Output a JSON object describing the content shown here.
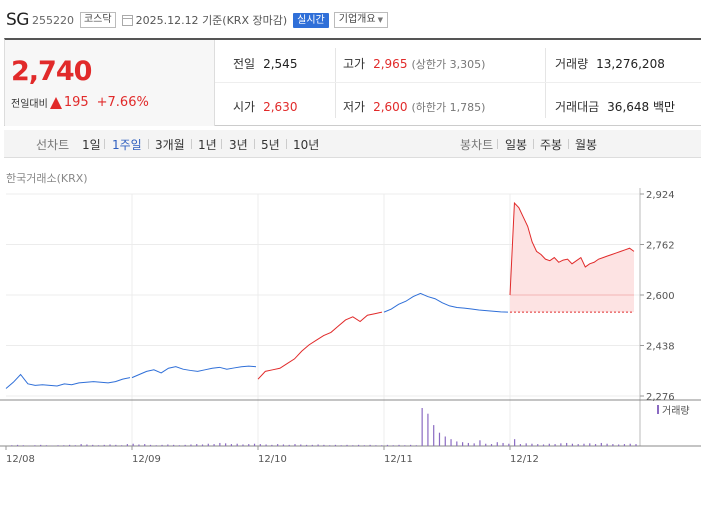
{
  "header": {
    "name": "SG",
    "code": "255220",
    "market": "코스닥",
    "date": "2025.12.12",
    "basis": "기준(KRX 장마감)",
    "live_label": "실시간",
    "corp_label": "기업개요",
    "calendar_icon": "calendar-icon"
  },
  "quote": {
    "price": "2,740",
    "change_label": "전일대비",
    "change": "195",
    "change_pct": "+7.66%",
    "prev_label": "전일",
    "prev": "2,545",
    "open_label": "시가",
    "open": "2,630",
    "high_label": "고가",
    "high": "2,965",
    "upper_limit": "(상한가 3,305)",
    "low_label": "저가",
    "low": "2,600",
    "lower_limit": "(하한가 1,785)",
    "volume_label": "거래량",
    "volume": "13,276,208",
    "amount_label": "거래대금",
    "amount": "36,648 백만",
    "up_color": "#e12a2a"
  },
  "tabs": {
    "line_label": "선차트",
    "line": [
      "1일",
      "1주일",
      "3개월",
      "1년",
      "3년",
      "5년",
      "10년"
    ],
    "active": "1주일",
    "candle_label": "봉차트",
    "candle": [
      "일봉",
      "주봉",
      "월봉"
    ]
  },
  "source_label": "한국거래소(KRX)",
  "chart_data": {
    "type": "line",
    "y_ticks": [
      "2,924",
      "2,762",
      "2,600",
      "2,438",
      "2,276"
    ],
    "ylim": [
      2276,
      2924
    ],
    "x_ticks": [
      "12/08",
      "12/09",
      "12/10",
      "12/11",
      "12/12"
    ],
    "prev_close": 2545,
    "volume_legend": "거래량",
    "series": [
      {
        "day": "12/08",
        "values": [
          2300,
          2320,
          2345,
          2315,
          2310,
          2312,
          2310,
          2308,
          2315,
          2312,
          2318,
          2320,
          2322,
          2320,
          2318,
          2322,
          2330,
          2335
        ]
      },
      {
        "day": "12/09",
        "values": [
          2335,
          2345,
          2355,
          2360,
          2350,
          2365,
          2370,
          2362,
          2358,
          2355,
          2360,
          2365,
          2368,
          2362,
          2366,
          2370,
          2372,
          2370
        ]
      },
      {
        "day": "12/10",
        "values": [
          2330,
          2355,
          2360,
          2365,
          2380,
          2395,
          2420,
          2440,
          2455,
          2470,
          2480,
          2500,
          2520,
          2530,
          2515,
          2535,
          2540,
          2545
        ]
      },
      {
        "day": "12/11",
        "values": [
          2545,
          2555,
          2570,
          2580,
          2595,
          2605,
          2595,
          2588,
          2575,
          2565,
          2560,
          2558,
          2555,
          2552,
          2550,
          2548,
          2546,
          2545
        ]
      },
      {
        "day": "12/12",
        "values": [
          2600,
          2895,
          2880,
          2850,
          2820,
          2770,
          2740,
          2730,
          2715,
          2710,
          2720,
          2705,
          2712,
          2715,
          2700,
          2710,
          2720,
          2690,
          2700,
          2705,
          2715,
          2720,
          2725,
          2730,
          2735,
          2740,
          2745,
          2750,
          2740
        ]
      }
    ],
    "volume": [
      0,
      0.02,
      0.03,
      0.02,
      0.01,
      0.02,
      0.03,
      0.02,
      0.01,
      0.02,
      0.02,
      0.03,
      0.02,
      0.05,
      0.04,
      0.03,
      0.02,
      0.03,
      0.04,
      0.03,
      0.02,
      0.05,
      0.06,
      0.04,
      0.05,
      0.03,
      0.02,
      0.03,
      0.04,
      0.03,
      0.02,
      0.03,
      0.04,
      0.05,
      0.04,
      0.06,
      0.05,
      0.08,
      0.07,
      0.05,
      0.06,
      0.04,
      0.05,
      0.06,
      0.05,
      0.04,
      0.03,
      0.05,
      0.04,
      0.03,
      0.05,
      0.04,
      0.03,
      0.03,
      0.04,
      0.03,
      0.02,
      0.03,
      0.02,
      0.03,
      0.02,
      0.03,
      0.02,
      0.03,
      0.02,
      0.02,
      0.03,
      0.02,
      0.03,
      0.02,
      0.03,
      0.02,
      1.0,
      0.85,
      0.55,
      0.35,
      0.25,
      0.18,
      0.12,
      0.1,
      0.08,
      0.07,
      0.15,
      0.06,
      0.05,
      0.1,
      0.08,
      0.06,
      0.18,
      0.05,
      0.07,
      0.06,
      0.05,
      0.04,
      0.06,
      0.05,
      0.07,
      0.08,
      0.06,
      0.05,
      0.06,
      0.07,
      0.05,
      0.08,
      0.06,
      0.05,
      0.04,
      0.05,
      0.06,
      0.05
    ]
  }
}
